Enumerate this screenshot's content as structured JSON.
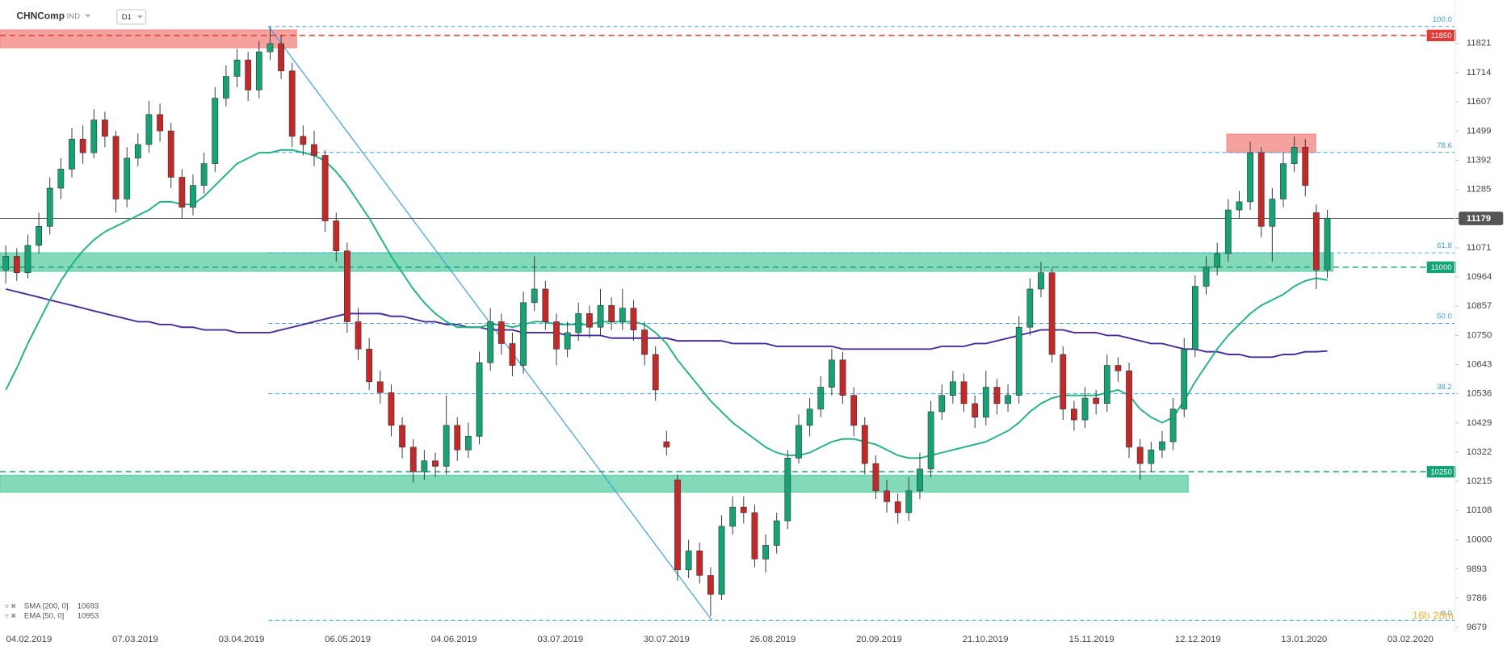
{
  "chart_data": {
    "type": "candlestick",
    "title": "CHNComp",
    "instrument_type": "IND",
    "timeframe": "D1",
    "ylim": [
      9660,
      11980
    ],
    "yticks": [
      11821,
      11714,
      11607,
      11499,
      11392,
      11285,
      11071,
      10964,
      10857,
      10750,
      10643,
      10536,
      10429,
      10322,
      10215,
      10108,
      10000,
      9893,
      9786,
      9679
    ],
    "x_labels": [
      "04.02.2019",
      "07.03.2019",
      "03.04.2019",
      "06.05.2019",
      "04.06.2019",
      "03.07.2019",
      "30.07.2019",
      "26.08.2019",
      "20.09.2019",
      "21.10.2019",
      "15.11.2019",
      "12.12.2019",
      "13.01.2020",
      "03.02.2020"
    ],
    "up_color": "#14a374",
    "down_color": "#c62828",
    "ohlc": [
      [
        10990,
        11080,
        10940,
        11040
      ],
      [
        11040,
        11070,
        10950,
        10980
      ],
      [
        10980,
        11120,
        10960,
        11080
      ],
      [
        11080,
        11200,
        11050,
        11150
      ],
      [
        11150,
        11330,
        11120,
        11290
      ],
      [
        11290,
        11400,
        11250,
        11360
      ],
      [
        11360,
        11510,
        11330,
        11470
      ],
      [
        11470,
        11520,
        11380,
        11420
      ],
      [
        11420,
        11580,
        11400,
        11540
      ],
      [
        11540,
        11570,
        11440,
        11480
      ],
      [
        11480,
        11500,
        11200,
        11250
      ],
      [
        11250,
        11440,
        11220,
        11400
      ],
      [
        11400,
        11490,
        11370,
        11450
      ],
      [
        11450,
        11610,
        11420,
        11560
      ],
      [
        11560,
        11600,
        11460,
        11500
      ],
      [
        11500,
        11530,
        11290,
        11330
      ],
      [
        11330,
        11360,
        11180,
        11220
      ],
      [
        11220,
        11340,
        11190,
        11300
      ],
      [
        11300,
        11420,
        11270,
        11380
      ],
      [
        11380,
        11660,
        11350,
        11620
      ],
      [
        11620,
        11740,
        11590,
        11700
      ],
      [
        11700,
        11800,
        11660,
        11760
      ],
      [
        11760,
        11790,
        11610,
        11650
      ],
      [
        11650,
        11830,
        11620,
        11790
      ],
      [
        11790,
        11880,
        11760,
        11820
      ],
      [
        11820,
        11850,
        11690,
        11720
      ],
      [
        11720,
        11750,
        11440,
        11480
      ],
      [
        11480,
        11520,
        11410,
        11450
      ],
      [
        11450,
        11500,
        11370,
        11410
      ],
      [
        11410,
        11430,
        11130,
        11170
      ],
      [
        11170,
        11200,
        11020,
        11060
      ],
      [
        11060,
        11090,
        10760,
        10800
      ],
      [
        10800,
        10850,
        10660,
        10700
      ],
      [
        10700,
        10740,
        10550,
        10580
      ],
      [
        10580,
        10620,
        10500,
        10540
      ],
      [
        10540,
        10570,
        10380,
        10420
      ],
      [
        10420,
        10450,
        10300,
        10340
      ],
      [
        10340,
        10370,
        10210,
        10250
      ],
      [
        10250,
        10330,
        10220,
        10290
      ],
      [
        10290,
        10320,
        10230,
        10270
      ],
      [
        10270,
        10530,
        10240,
        10420
      ],
      [
        10420,
        10450,
        10290,
        10330
      ],
      [
        10330,
        10430,
        10300,
        10380
      ],
      [
        10380,
        10690,
        10350,
        10650
      ],
      [
        10650,
        10850,
        10620,
        10800
      ],
      [
        10800,
        10830,
        10680,
        10720
      ],
      [
        10720,
        10760,
        10600,
        10640
      ],
      [
        10640,
        10910,
        10610,
        10870
      ],
      [
        10870,
        11040,
        10840,
        10920
      ],
      [
        10920,
        10950,
        10770,
        10800
      ],
      [
        10800,
        10830,
        10640,
        10700
      ],
      [
        10700,
        10800,
        10670,
        10760
      ],
      [
        10760,
        10870,
        10730,
        10830
      ],
      [
        10830,
        10860,
        10740,
        10780
      ],
      [
        10780,
        10920,
        10750,
        10860
      ],
      [
        10860,
        10890,
        10770,
        10800
      ],
      [
        10800,
        10920,
        10770,
        10850
      ],
      [
        10850,
        10880,
        10730,
        10770
      ],
      [
        10770,
        10800,
        10640,
        10680
      ],
      [
        10680,
        10710,
        10510,
        10550
      ],
      [
        10360,
        10400,
        10310,
        10340
      ],
      [
        10220,
        10240,
        9850,
        9890
      ],
      [
        9890,
        10000,
        9860,
        9960
      ],
      [
        9960,
        9990,
        9840,
        9870
      ],
      [
        9870,
        9900,
        9720,
        9800
      ],
      [
        9800,
        10090,
        9780,
        10050
      ],
      [
        10050,
        10160,
        10020,
        10120
      ],
      [
        10120,
        10160,
        10060,
        10100
      ],
      [
        10100,
        10130,
        9900,
        9930
      ],
      [
        9930,
        10020,
        9880,
        9980
      ],
      [
        9980,
        10100,
        9950,
        10070
      ],
      [
        10070,
        10330,
        10040,
        10300
      ],
      [
        10300,
        10460,
        10280,
        10420
      ],
      [
        10420,
        10520,
        10380,
        10480
      ],
      [
        10480,
        10600,
        10450,
        10560
      ],
      [
        10560,
        10700,
        10530,
        10660
      ],
      [
        10660,
        10690,
        10500,
        10530
      ],
      [
        10530,
        10560,
        10380,
        10420
      ],
      [
        10420,
        10450,
        10240,
        10280
      ],
      [
        10280,
        10310,
        10150,
        10180
      ],
      [
        10180,
        10220,
        10100,
        10140
      ],
      [
        10140,
        10170,
        10060,
        10100
      ],
      [
        10100,
        10230,
        10070,
        10180
      ],
      [
        10180,
        10320,
        10150,
        10260
      ],
      [
        10260,
        10510,
        10230,
        10470
      ],
      [
        10470,
        10570,
        10440,
        10530
      ],
      [
        10530,
        10620,
        10500,
        10580
      ],
      [
        10580,
        10610,
        10470,
        10500
      ],
      [
        10500,
        10530,
        10410,
        10450
      ],
      [
        10450,
        10620,
        10420,
        10560
      ],
      [
        10560,
        10590,
        10460,
        10500
      ],
      [
        10500,
        10570,
        10470,
        10530
      ],
      [
        10530,
        10820,
        10500,
        10780
      ],
      [
        10780,
        10960,
        10750,
        10920
      ],
      [
        10920,
        11020,
        10890,
        10980
      ],
      [
        10980,
        11000,
        10650,
        10680
      ],
      [
        10680,
        10710,
        10440,
        10480
      ],
      [
        10480,
        10510,
        10400,
        10440
      ],
      [
        10440,
        10560,
        10410,
        10520
      ],
      [
        10520,
        10550,
        10460,
        10500
      ],
      [
        10500,
        10680,
        10470,
        10640
      ],
      [
        10640,
        10670,
        10580,
        10620
      ],
      [
        10620,
        10650,
        10300,
        10340
      ],
      [
        10340,
        10370,
        10220,
        10280
      ],
      [
        10280,
        10360,
        10250,
        10330
      ],
      [
        10330,
        10400,
        10300,
        10360
      ],
      [
        10360,
        10520,
        10330,
        10480
      ],
      [
        10480,
        10740,
        10450,
        10700
      ],
      [
        10700,
        10970,
        10670,
        10930
      ],
      [
        10930,
        11040,
        10900,
        11000
      ],
      [
        11000,
        11090,
        10970,
        11050
      ],
      [
        11050,
        11250,
        11020,
        11210
      ],
      [
        11210,
        11280,
        11180,
        11240
      ],
      [
        11240,
        11460,
        11210,
        11420
      ],
      [
        11420,
        11440,
        11110,
        11150
      ],
      [
        11150,
        11290,
        11020,
        11250
      ],
      [
        11250,
        11420,
        11220,
        11380
      ],
      [
        11380,
        11480,
        11350,
        11440
      ],
      [
        11440,
        11470,
        11260,
        11300
      ],
      [
        11200,
        11230,
        10920,
        10990
      ],
      [
        10990,
        11210,
        10960,
        11180
      ]
    ],
    "series": [
      {
        "name": "SMA [200, 0]",
        "color": "#4a2c9e",
        "values": [
          10920,
          10910,
          10900,
          10890,
          10880,
          10870,
          10860,
          10850,
          10840,
          10830,
          10820,
          10810,
          10800,
          10800,
          10790,
          10790,
          10780,
          10780,
          10770,
          10770,
          10770,
          10760,
          10760,
          10760,
          10760,
          10770,
          10780,
          10790,
          10800,
          10810,
          10820,
          10830,
          10830,
          10830,
          10830,
          10820,
          10820,
          10810,
          10800,
          10800,
          10790,
          10790,
          10780,
          10780,
          10770,
          10770,
          10770,
          10760,
          10760,
          10760,
          10760,
          10750,
          10750,
          10750,
          10750,
          10740,
          10740,
          10740,
          10740,
          10740,
          10740,
          10730,
          10730,
          10730,
          10730,
          10730,
          10720,
          10720,
          10720,
          10720,
          10710,
          10710,
          10710,
          10710,
          10710,
          10710,
          10700,
          10700,
          10700,
          10700,
          10700,
          10700,
          10700,
          10700,
          10700,
          10710,
          10710,
          10710,
          10720,
          10720,
          10730,
          10740,
          10750,
          10760,
          10770,
          10770,
          10770,
          10760,
          10760,
          10760,
          10750,
          10750,
          10740,
          10730,
          10720,
          10720,
          10710,
          10700,
          10700,
          10690,
          10690,
          10680,
          10680,
          10670,
          10670,
          10670,
          10680,
          10680,
          10690,
          10690,
          10693
        ]
      },
      {
        "name": "EMA [50, 0]",
        "color": "#1db482",
        "values": [
          10550,
          10630,
          10720,
          10800,
          10880,
          10950,
          11010,
          11060,
          11100,
          11130,
          11150,
          11170,
          11190,
          11210,
          11240,
          11240,
          11230,
          11230,
          11260,
          11300,
          11340,
          11380,
          11400,
          11420,
          11420,
          11430,
          11430,
          11420,
          11410,
          11390,
          11350,
          11300,
          11240,
          11180,
          11110,
          11040,
          10980,
          10920,
          10870,
          10830,
          10800,
          10780,
          10780,
          10780,
          10790,
          10790,
          10780,
          10790,
          10800,
          10800,
          10790,
          10790,
          10790,
          10790,
          10800,
          10800,
          10800,
          10800,
          10790,
          10760,
          10720,
          10660,
          10610,
          10560,
          10510,
          10470,
          10430,
          10400,
          10370,
          10340,
          10320,
          10310,
          10310,
          10320,
          10340,
          10360,
          10370,
          10370,
          10360,
          10350,
          10330,
          10310,
          10300,
          10300,
          10310,
          10320,
          10330,
          10340,
          10350,
          10360,
          10380,
          10400,
          10430,
          10470,
          10500,
          10520,
          10530,
          10530,
          10530,
          10530,
          10540,
          10550,
          10530,
          10480,
          10450,
          10430,
          10450,
          10510,
          10580,
          10640,
          10700,
          10750,
          10790,
          10830,
          10860,
          10880,
          10900,
          10930,
          10950,
          10960,
          10953
        ]
      }
    ],
    "zones": [
      {
        "from": 11805,
        "to": 11870,
        "color": "#f28b86"
      },
      {
        "from": 11421,
        "to": 11488,
        "color": "#f28b86"
      },
      {
        "from": 10985,
        "to": 11053,
        "color": "#63d1a8"
      },
      {
        "from": 10175,
        "to": 10237,
        "color": "#63d1a8"
      }
    ],
    "levels": [
      {
        "value": 11850,
        "color": "#e53935"
      },
      {
        "value": 11000,
        "color": "#14a374"
      },
      {
        "value": 10250,
        "color": "#14a374"
      }
    ],
    "fibonacci": {
      "color": "#3aa0e8",
      "levels": [
        {
          "value": 11883,
          "label": "100.0"
        },
        {
          "value": 11421,
          "label": "78.6"
        },
        {
          "value": 11053,
          "label": "61.8"
        },
        {
          "value": 10794,
          "label": "50.0"
        },
        {
          "value": 10536,
          "label": "38.2"
        },
        {
          "value": 9705,
          "label": "0.0"
        }
      ]
    },
    "trend_line": {
      "from": 11883,
      "to": 9705,
      "color": "#3aa0e8"
    },
    "current_price": {
      "value": 11179,
      "color": "#555555"
    },
    "countdown": "16h 28m"
  }
}
